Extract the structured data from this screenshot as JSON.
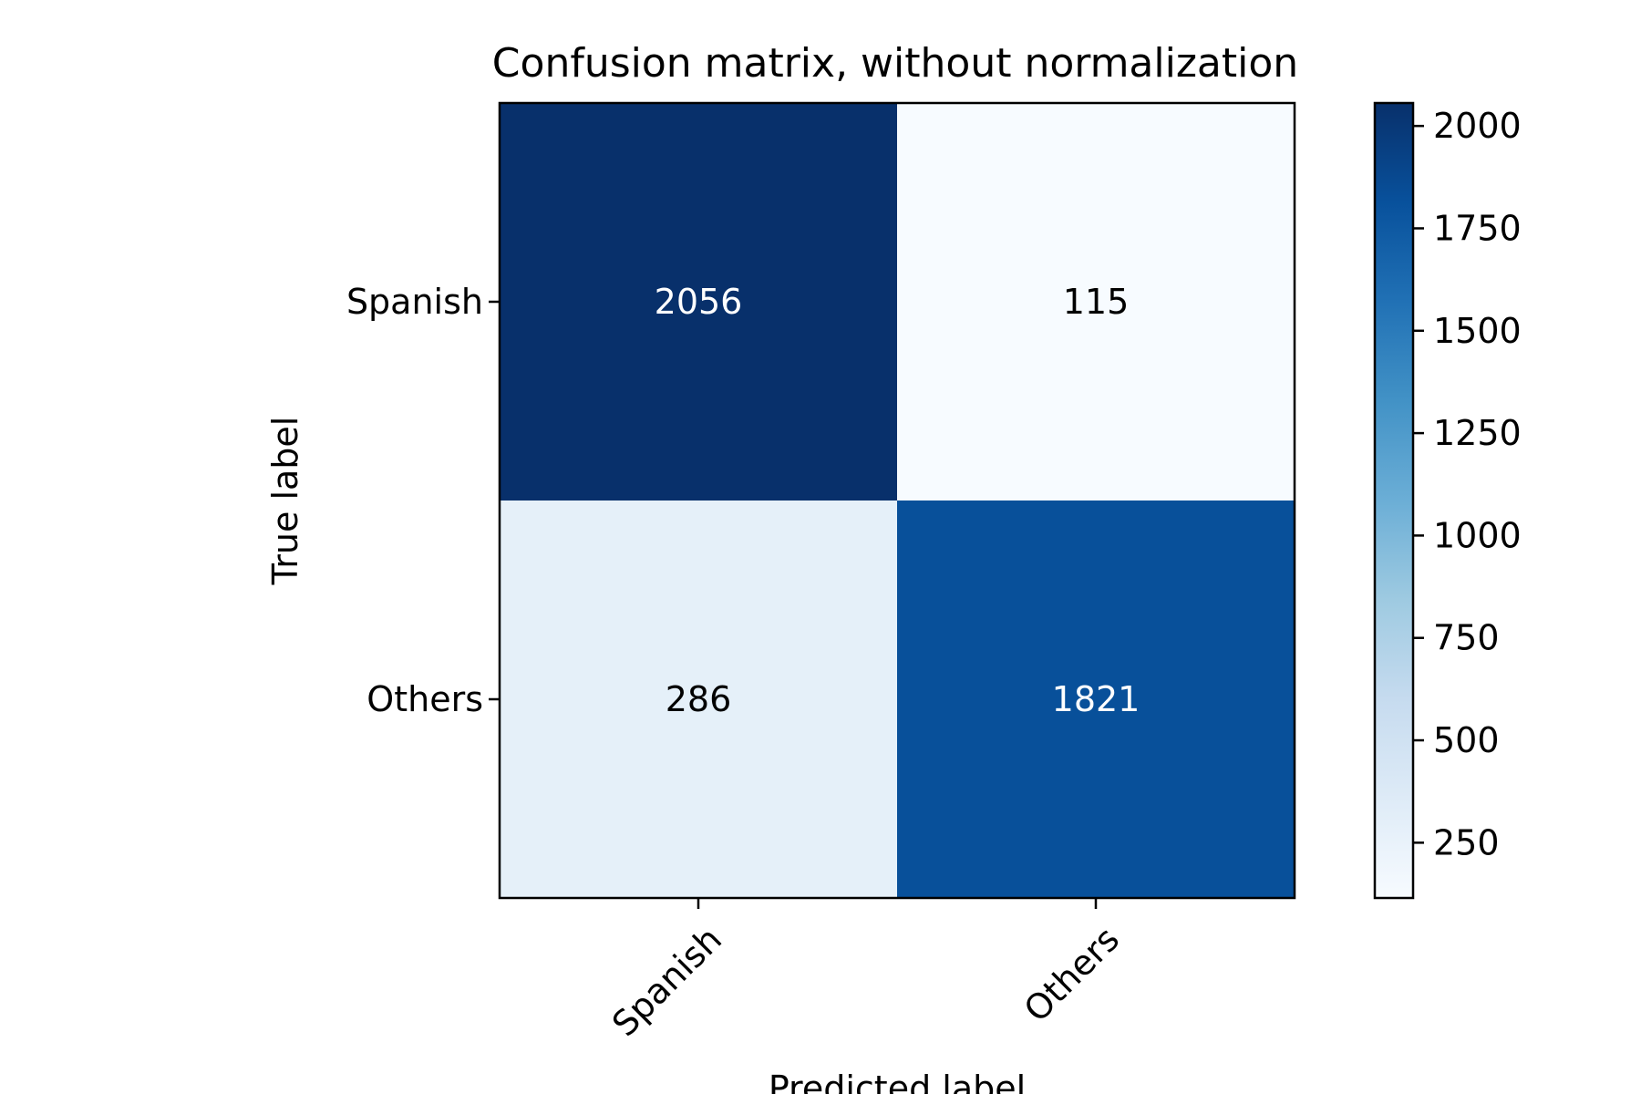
{
  "chart_data": {
    "type": "heatmap",
    "title": "Confusion matrix, without normalization",
    "xlabel": "Predicted label",
    "ylabel": "True label",
    "x_categories": [
      "Spanish",
      "Others"
    ],
    "y_categories": [
      "Spanish",
      "Others"
    ],
    "matrix": [
      [
        2056,
        115
      ],
      [
        286,
        1821
      ]
    ],
    "colormap": "Blues",
    "color_low": "#f7fbff",
    "color_high": "#08306b",
    "colorbar": {
      "range": [
        115,
        2056
      ],
      "ticks": [
        250,
        500,
        750,
        1000,
        1250,
        1500,
        1750,
        2000
      ]
    },
    "text_color_dark_cell": "#ffffff",
    "text_color_light_cell": "#000000"
  }
}
